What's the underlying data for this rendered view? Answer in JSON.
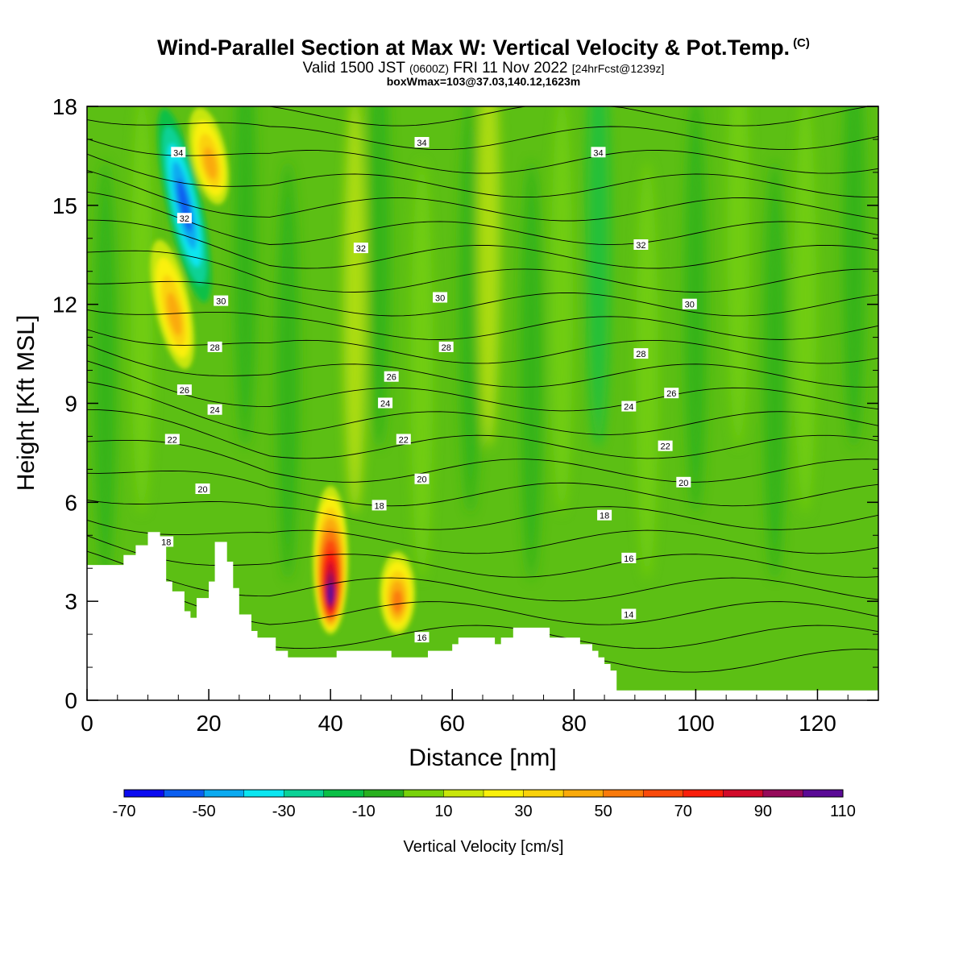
{
  "header": {
    "title": "Wind-Parallel Section at Max W: Vertical Velocity & Pot.Temp.",
    "title_mark": "(C)",
    "valid_prefix": "Valid 1500 JST",
    "valid_utc": "(0600Z)",
    "valid_date": "FRI 11 Nov 2022",
    "valid_fcst": "[24hrFcst@1239z]",
    "box_info": "boxWmax=103@37.03,140.12,1623m"
  },
  "chart_data": {
    "type": "heatmap",
    "xlabel": "Distance [nm]",
    "ylabel": "Height [Kft MSL]",
    "xlim": [
      0,
      130
    ],
    "ylim": [
      0,
      18
    ],
    "x_ticks": [
      "0",
      "20",
      "40",
      "60",
      "80",
      "100",
      "120"
    ],
    "x_tick_values": [
      0,
      20,
      40,
      60,
      80,
      100,
      120
    ],
    "y_ticks": [
      "0",
      "3",
      "6",
      "9",
      "12",
      "15",
      "18"
    ],
    "y_tick_values": [
      0,
      3,
      6,
      9,
      12,
      15,
      18
    ],
    "grid": false,
    "colorbar": {
      "title": "Vertical Velocity [cm/s]",
      "labels": [
        "-70",
        "-50",
        "-30",
        "-10",
        "10",
        "30",
        "50",
        "70",
        "90",
        "110"
      ],
      "levels": [
        -70,
        -60,
        -50,
        -40,
        -30,
        -20,
        -10,
        0,
        10,
        20,
        30,
        40,
        50,
        60,
        70,
        80,
        90,
        100,
        110
      ],
      "colors": [
        "#0a0af0",
        "#0a5ef0",
        "#0aaaf0",
        "#0ae6f0",
        "#0ad296",
        "#0ac046",
        "#28b01e",
        "#78d20a",
        "#c8e60a",
        "#faf00a",
        "#fad20a",
        "#faaa0a",
        "#fa7a0a",
        "#fa4a0a",
        "#fa1e0a",
        "#d20a2a",
        "#960a5a",
        "#5a0a96"
      ]
    },
    "velocity_features": [
      {
        "name": "downdraft",
        "x_center": 16,
        "z_bottom": 12,
        "z_top": 18,
        "w": -50
      },
      {
        "name": "updraft",
        "x_center": 40,
        "z_bottom": 2,
        "z_top": 6.5,
        "w": 103
      },
      {
        "name": "updraft",
        "x_center": 51,
        "z_bottom": 2,
        "z_top": 4.5,
        "w": 50
      },
      {
        "name": "updraft",
        "x_center": 14,
        "z_bottom": 10,
        "z_top": 14,
        "w": 40
      },
      {
        "name": "updraft",
        "x_center": 20,
        "z_bottom": 15,
        "z_top": 18,
        "w": 40
      }
    ],
    "theta_contours": {
      "label_values": [
        14,
        16,
        18,
        20,
        22,
        24,
        26,
        28,
        30,
        32,
        34
      ],
      "labels": [
        {
          "text": "34",
          "x": 15,
          "z": 16.6
        },
        {
          "text": "34",
          "x": 55,
          "z": 16.9
        },
        {
          "text": "34",
          "x": 84,
          "z": 16.6
        },
        {
          "text": "32",
          "x": 16,
          "z": 14.6
        },
        {
          "text": "32",
          "x": 45,
          "z": 13.7
        },
        {
          "text": "32",
          "x": 91,
          "z": 13.8
        },
        {
          "text": "30",
          "x": 22,
          "z": 12.1
        },
        {
          "text": "30",
          "x": 58,
          "z": 12.2
        },
        {
          "text": "30",
          "x": 99,
          "z": 12.0
        },
        {
          "text": "28",
          "x": 21,
          "z": 10.7
        },
        {
          "text": "28",
          "x": 59,
          "z": 10.7
        },
        {
          "text": "28",
          "x": 91,
          "z": 10.5
        },
        {
          "text": "26",
          "x": 16,
          "z": 9.4
        },
        {
          "text": "26",
          "x": 50,
          "z": 9.8
        },
        {
          "text": "26",
          "x": 96,
          "z": 9.3
        },
        {
          "text": "24",
          "x": 21,
          "z": 8.8
        },
        {
          "text": "24",
          "x": 49,
          "z": 9.0
        },
        {
          "text": "24",
          "x": 89,
          "z": 8.9
        },
        {
          "text": "22",
          "x": 14,
          "z": 7.9
        },
        {
          "text": "22",
          "x": 52,
          "z": 7.9
        },
        {
          "text": "22",
          "x": 95,
          "z": 7.7
        },
        {
          "text": "20",
          "x": 19,
          "z": 6.4
        },
        {
          "text": "20",
          "x": 55,
          "z": 6.7
        },
        {
          "text": "20",
          "x": 98,
          "z": 6.6
        },
        {
          "text": "18",
          "x": 13,
          "z": 4.8
        },
        {
          "text": "18",
          "x": 48,
          "z": 5.9
        },
        {
          "text": "18",
          "x": 85,
          "z": 5.6
        },
        {
          "text": "16",
          "x": 55,
          "z": 1.9
        },
        {
          "text": "16",
          "x": 89,
          "z": 4.3
        },
        {
          "text": "14",
          "x": 89,
          "z": 2.6
        }
      ]
    },
    "terrain_kft": [
      [
        0,
        4.1
      ],
      [
        5,
        4.1
      ],
      [
        6,
        4.4
      ],
      [
        8,
        4.7
      ],
      [
        10,
        5.1
      ],
      [
        11,
        5.1
      ],
      [
        12,
        4.7
      ],
      [
        13,
        3.6
      ],
      [
        14,
        3.3
      ],
      [
        16,
        2.7
      ],
      [
        17,
        2.5
      ],
      [
        18,
        3.1
      ],
      [
        20,
        3.6
      ],
      [
        21,
        4.8
      ],
      [
        22,
        4.8
      ],
      [
        23,
        4.2
      ],
      [
        24,
        3.4
      ],
      [
        25,
        2.6
      ],
      [
        27,
        2.1
      ],
      [
        28,
        1.9
      ],
      [
        31,
        1.5
      ],
      [
        33,
        1.3
      ],
      [
        39,
        1.3
      ],
      [
        40,
        1.3
      ],
      [
        41,
        1.5
      ],
      [
        47,
        1.5
      ],
      [
        49,
        1.5
      ],
      [
        50,
        1.3
      ],
      [
        55,
        1.3
      ],
      [
        56,
        1.5
      ],
      [
        60,
        1.7
      ],
      [
        61,
        1.9
      ],
      [
        66,
        1.9
      ],
      [
        67,
        1.7
      ],
      [
        68,
        1.9
      ],
      [
        70,
        2.2
      ],
      [
        75,
        2.2
      ],
      [
        76,
        1.9
      ],
      [
        80,
        1.9
      ],
      [
        81,
        1.7
      ],
      [
        83,
        1.5
      ],
      [
        84,
        1.3
      ],
      [
        85,
        1.1
      ],
      [
        86,
        0.9
      ],
      [
        87,
        0.3
      ],
      [
        130,
        0.3
      ]
    ]
  }
}
